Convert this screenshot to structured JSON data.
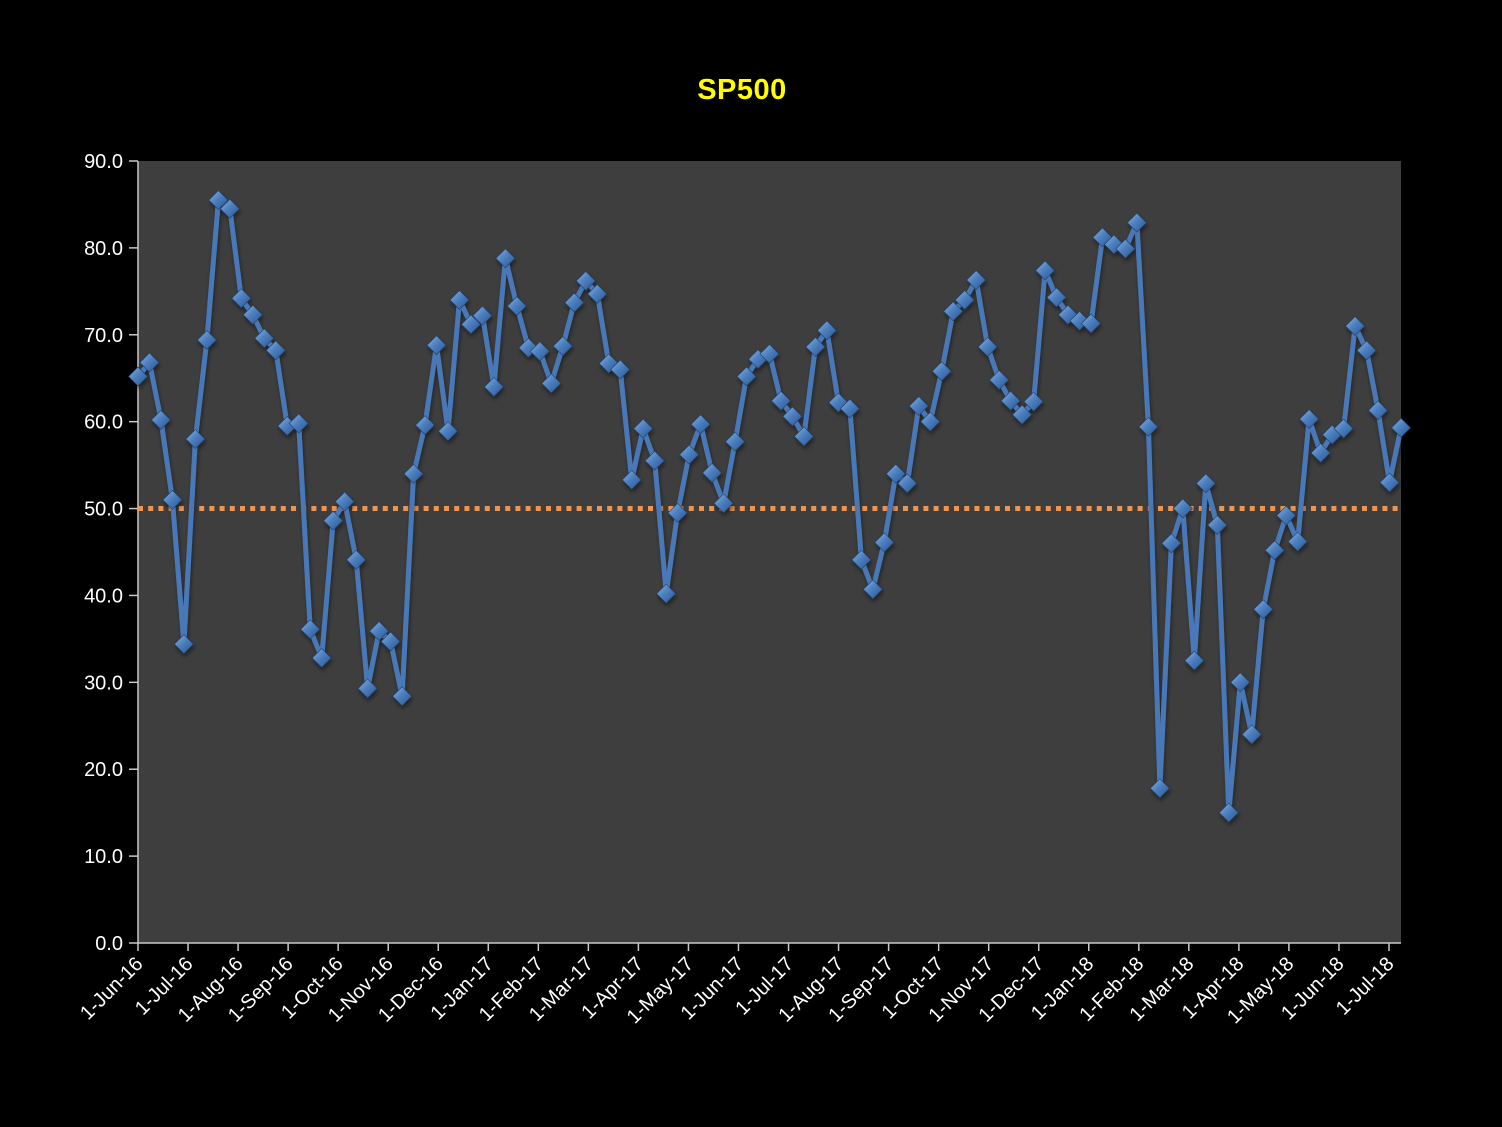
{
  "title": "SP500",
  "colors": {
    "background": "#000000",
    "plot_bg": "#3E3E3E",
    "title": "#FFFF00",
    "axis_text": "#FFFFFF",
    "axis_line": "#C8C8C8",
    "series_line": "#4878B8",
    "marker_light": "#8FB4E3",
    "marker_mid": "#4D80C0",
    "marker_dark": "#2A5390",
    "reference_line": "#F0944E"
  },
  "chart_data": {
    "type": "line",
    "title": "SP500",
    "xlabel": "",
    "ylabel": "",
    "ylim": [
      0,
      90
    ],
    "grid": false,
    "legend": false,
    "marker": "diamond",
    "y_ticks": [
      0,
      10,
      20,
      30,
      40,
      50,
      60,
      70,
      80,
      90
    ],
    "y_tick_labels": [
      "0.0",
      "10.0",
      "20.0",
      "30.0",
      "40.0",
      "50.0",
      "60.0",
      "70.0",
      "80.0",
      "90.0"
    ],
    "x_tick_labels": [
      "1-Jun-16",
      "1-Jul-16",
      "1-Aug-16",
      "1-Sep-16",
      "1-Oct-16",
      "1-Nov-16",
      "1-Dec-16",
      "1-Jan-17",
      "1-Feb-17",
      "1-Mar-17",
      "1-Apr-17",
      "1-May-17",
      "1-Jun-17",
      "1-Jul-17",
      "1-Aug-17",
      "1-Sep-17",
      "1-Oct-17",
      "1-Nov-17",
      "1-Dec-17",
      "1-Jan-18",
      "1-Feb-18",
      "1-Mar-18",
      "1-Apr-18",
      "1-May-18",
      "1-Jun-18",
      "1-Jul-18"
    ],
    "reference_line": {
      "value": 50.0,
      "style": "dotted"
    },
    "series": [
      {
        "name": "SP500",
        "values": [
          65.2,
          66.8,
          60.2,
          51.0,
          34.4,
          58.0,
          69.4,
          85.5,
          84.5,
          74.2,
          72.3,
          69.6,
          68.2,
          59.5,
          59.8,
          36.1,
          32.8,
          48.6,
          50.8,
          44.1,
          29.3,
          35.9,
          34.7,
          28.4,
          54.0,
          59.6,
          68.8,
          58.9,
          74.0,
          71.2,
          72.2,
          64.0,
          78.8,
          73.3,
          68.5,
          68.1,
          64.4,
          68.7,
          73.7,
          76.2,
          74.7,
          66.7,
          66.0,
          53.3,
          59.2,
          55.5,
          40.2,
          49.5,
          56.2,
          59.7,
          54.1,
          50.6,
          57.7,
          65.2,
          67.2,
          67.8,
          62.4,
          60.6,
          58.3,
          68.6,
          70.5,
          62.2,
          61.5,
          44.1,
          40.7,
          46.1,
          54.0,
          52.9,
          61.8,
          60.0,
          65.8,
          72.7,
          74.0,
          76.3,
          68.6,
          64.8,
          62.4,
          60.8,
          62.3,
          77.4,
          74.3,
          72.3,
          71.6,
          71.3,
          81.2,
          80.4,
          79.9,
          82.9,
          59.4,
          17.8,
          46.0,
          50.0,
          32.5,
          52.9,
          48.1,
          15.0,
          30.0,
          24.0,
          38.4,
          45.2,
          49.2,
          46.2,
          60.3,
          56.4,
          58.5,
          59.2,
          71.0,
          68.2,
          61.3,
          53.0,
          59.3
        ]
      }
    ]
  }
}
